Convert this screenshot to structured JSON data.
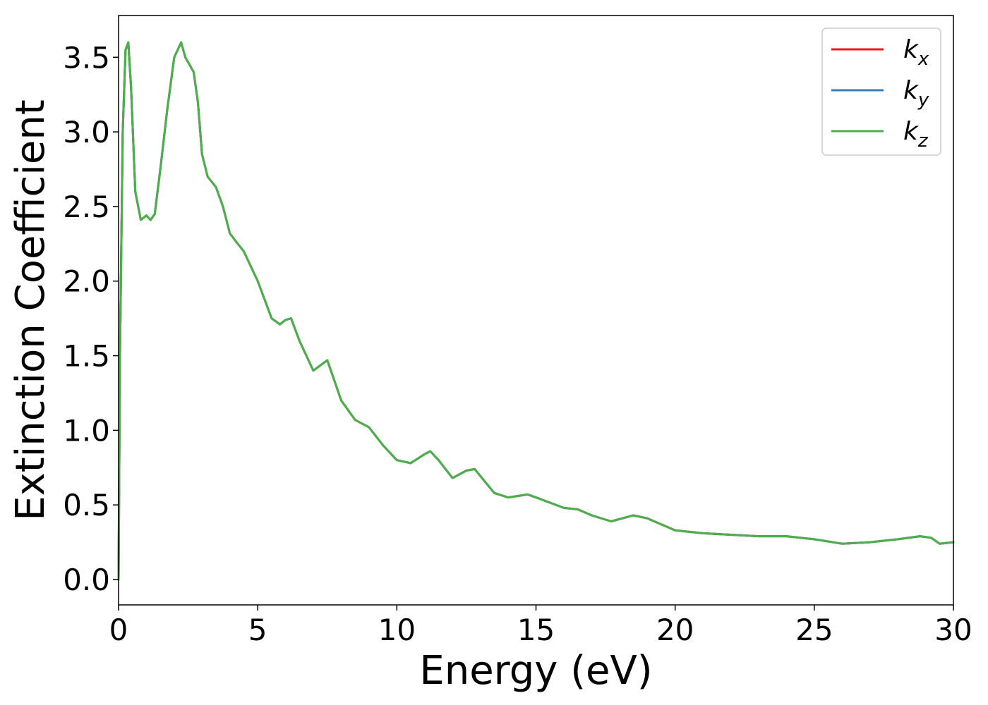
{
  "chart_data": {
    "type": "line",
    "xlabel": "Energy (eV)",
    "ylabel": "Extinction Coefficient",
    "xlim": [
      0,
      30
    ],
    "ylim": [
      -0.17,
      3.78
    ],
    "xticks": [
      0,
      5,
      10,
      15,
      20,
      25,
      30
    ],
    "xtick_labels": [
      "0",
      "5",
      "10",
      "15",
      "20",
      "25",
      "30"
    ],
    "yticks": [
      0.0,
      0.5,
      1.0,
      1.5,
      2.0,
      2.5,
      3.0,
      3.5
    ],
    "ytick_labels": [
      "0.0",
      "0.5",
      "1.0",
      "1.5",
      "2.0",
      "2.5",
      "3.0",
      "3.5"
    ],
    "grid": false,
    "legend_position": "top-right",
    "x": [
      0,
      0.05,
      0.15,
      0.25,
      0.35,
      0.45,
      0.6,
      0.8,
      1.0,
      1.15,
      1.3,
      1.5,
      1.75,
      2.0,
      2.25,
      2.4,
      2.55,
      2.7,
      2.85,
      3.0,
      3.2,
      3.5,
      3.75,
      4.0,
      4.2,
      4.5,
      5.0,
      5.5,
      5.8,
      6.0,
      6.2,
      6.5,
      7.0,
      7.5,
      8.0,
      8.5,
      9.0,
      9.5,
      10.0,
      10.5,
      11.0,
      11.2,
      11.5,
      12.0,
      12.5,
      12.8,
      13.5,
      14.0,
      14.7,
      15.0,
      16.0,
      16.5,
      17.0,
      17.7,
      18.5,
      19.0,
      20.0,
      21.0,
      22.0,
      23.0,
      24.0,
      25.0,
      26.0,
      27.0,
      28.0,
      28.8,
      29.2,
      29.5,
      30.0
    ],
    "series": [
      {
        "name": "k_x",
        "color": "#e41a1c",
        "values": [
          0.0,
          1.5,
          3.0,
          3.55,
          3.6,
          3.3,
          2.6,
          2.41,
          2.44,
          2.41,
          2.45,
          2.75,
          3.15,
          3.5,
          3.6,
          3.5,
          3.45,
          3.4,
          3.2,
          2.85,
          2.7,
          2.63,
          2.5,
          2.32,
          2.27,
          2.2,
          2.0,
          1.75,
          1.71,
          1.74,
          1.75,
          1.6,
          1.4,
          1.47,
          1.2,
          1.07,
          1.02,
          0.9,
          0.8,
          0.78,
          0.84,
          0.86,
          0.8,
          0.68,
          0.73,
          0.74,
          0.58,
          0.55,
          0.57,
          0.55,
          0.48,
          0.47,
          0.43,
          0.39,
          0.43,
          0.41,
          0.33,
          0.31,
          0.3,
          0.29,
          0.29,
          0.27,
          0.24,
          0.25,
          0.27,
          0.29,
          0.28,
          0.24,
          0.25
        ]
      },
      {
        "name": "k_y",
        "color": "#377eb8",
        "values": [
          0.0,
          1.5,
          3.0,
          3.55,
          3.6,
          3.3,
          2.6,
          2.41,
          2.44,
          2.41,
          2.45,
          2.75,
          3.15,
          3.5,
          3.6,
          3.5,
          3.45,
          3.4,
          3.2,
          2.85,
          2.7,
          2.63,
          2.5,
          2.32,
          2.27,
          2.2,
          2.0,
          1.75,
          1.71,
          1.74,
          1.75,
          1.6,
          1.4,
          1.47,
          1.2,
          1.07,
          1.02,
          0.9,
          0.8,
          0.78,
          0.84,
          0.86,
          0.8,
          0.68,
          0.73,
          0.74,
          0.58,
          0.55,
          0.57,
          0.55,
          0.48,
          0.47,
          0.43,
          0.39,
          0.43,
          0.41,
          0.33,
          0.31,
          0.3,
          0.29,
          0.29,
          0.27,
          0.24,
          0.25,
          0.27,
          0.29,
          0.28,
          0.24,
          0.25
        ]
      },
      {
        "name": "k_z",
        "color": "#4daf4a",
        "values": [
          0.0,
          1.5,
          3.0,
          3.55,
          3.6,
          3.3,
          2.6,
          2.41,
          2.44,
          2.41,
          2.45,
          2.75,
          3.15,
          3.5,
          3.6,
          3.5,
          3.45,
          3.4,
          3.2,
          2.85,
          2.7,
          2.63,
          2.5,
          2.32,
          2.27,
          2.2,
          2.0,
          1.75,
          1.71,
          1.74,
          1.75,
          1.6,
          1.4,
          1.47,
          1.2,
          1.07,
          1.02,
          0.9,
          0.8,
          0.78,
          0.84,
          0.86,
          0.8,
          0.68,
          0.73,
          0.74,
          0.58,
          0.55,
          0.57,
          0.55,
          0.48,
          0.47,
          0.43,
          0.39,
          0.43,
          0.41,
          0.33,
          0.31,
          0.3,
          0.29,
          0.29,
          0.27,
          0.24,
          0.25,
          0.27,
          0.29,
          0.28,
          0.24,
          0.25
        ]
      }
    ],
    "legend": [
      {
        "base": "k",
        "sub": "x",
        "color": "#e41a1c"
      },
      {
        "base": "k",
        "sub": "y",
        "color": "#377eb8"
      },
      {
        "base": "k",
        "sub": "z",
        "color": "#4daf4a"
      }
    ]
  }
}
